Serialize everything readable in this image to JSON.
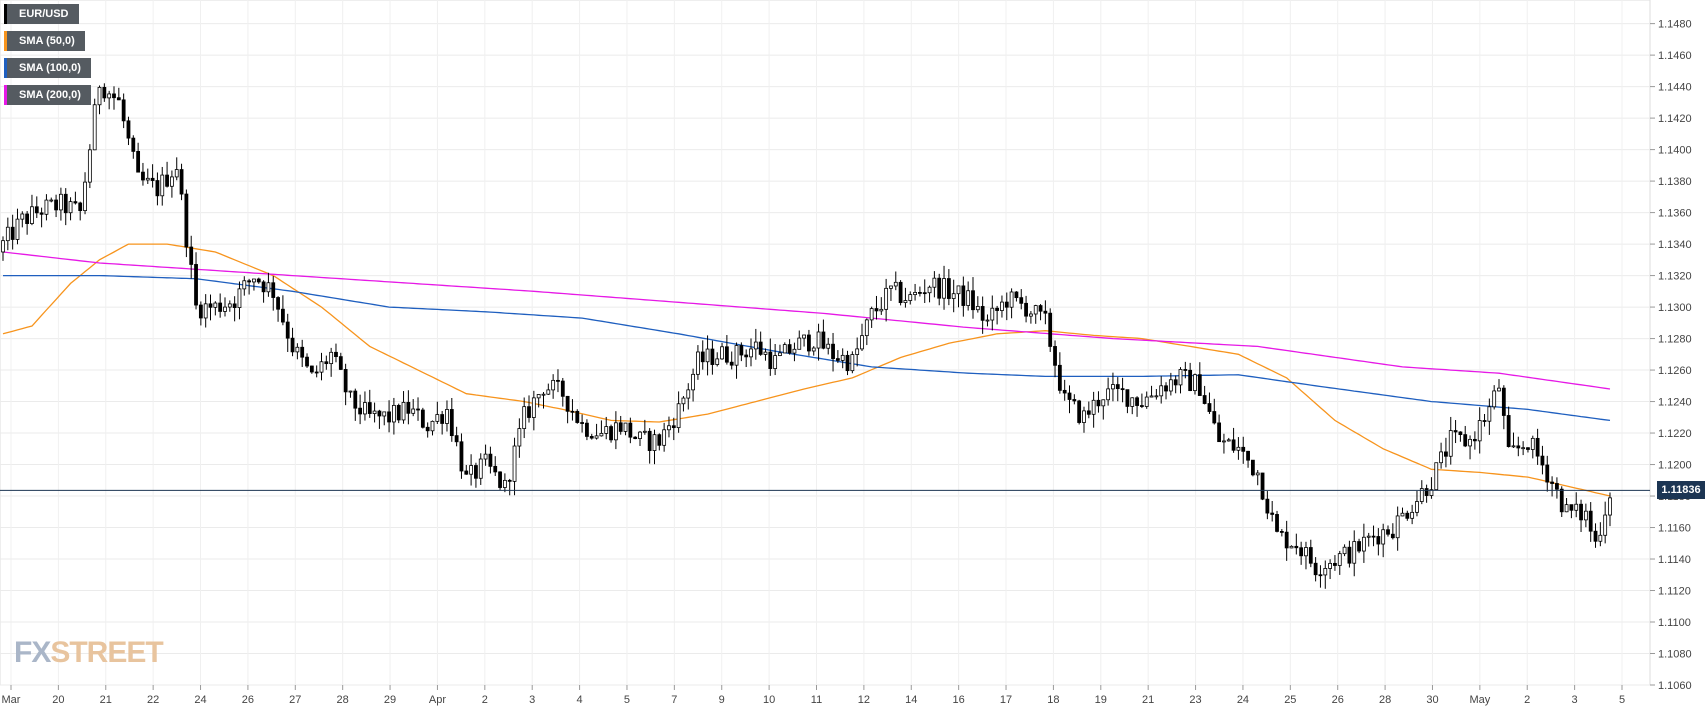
{
  "legend": [
    {
      "label": "EUR/USD",
      "color": "#000000"
    },
    {
      "label": "SMA (50,0)",
      "color": "#f7941d"
    },
    {
      "label": "SMA (100,0)",
      "color": "#1f5fbf"
    },
    {
      "label": "SMA (200,0)",
      "color": "#e619e6"
    }
  ],
  "logo": {
    "fx": "FX",
    "street": "STREET"
  },
  "current_price_label": "1.11836",
  "chart_data": {
    "type": "candlestick",
    "symbol": "EUR/USD",
    "y_ticks": [
      "1.1480",
      "1.1460",
      "1.1440",
      "1.1420",
      "1.1400",
      "1.1380",
      "1.1360",
      "1.1340",
      "1.1320",
      "1.1300",
      "1.1280",
      "1.1260",
      "1.1240",
      "1.1220",
      "1.1200",
      "1.1180",
      "1.1160",
      "1.1140",
      "1.1120",
      "1.1100",
      "1.1080",
      "1.1060"
    ],
    "ylim": [
      1.106,
      1.1495
    ],
    "x_ticks": [
      "Mar",
      "20",
      "21",
      "22",
      "24",
      "26",
      "27",
      "28",
      "29",
      "Apr",
      "2",
      "3",
      "4",
      "5",
      "7",
      "9",
      "10",
      "11",
      "12",
      "14",
      "16",
      "17",
      "18",
      "19",
      "21",
      "23",
      "24",
      "25",
      "26",
      "28",
      "30",
      "May",
      "2",
      "3",
      "5"
    ],
    "current_price": 1.11836,
    "anchors": {
      "close": [
        [
          0,
          1.134
        ],
        [
          4,
          1.1355
        ],
        [
          8,
          1.1362
        ],
        [
          12,
          1.1365
        ],
        [
          16,
          1.136
        ],
        [
          20,
          1.1443
        ],
        [
          24,
          1.143
        ],
        [
          28,
          1.138
        ],
        [
          32,
          1.1375
        ],
        [
          36,
          1.139
        ],
        [
          40,
          1.13
        ],
        [
          44,
          1.13
        ],
        [
          48,
          1.1305
        ],
        [
          52,
          1.132
        ],
        [
          56,
          1.131
        ],
        [
          60,
          1.1275
        ],
        [
          64,
          1.1255
        ],
        [
          68,
          1.127
        ],
        [
          72,
          1.124
        ],
        [
          76,
          1.123
        ],
        [
          80,
          1.123
        ],
        [
          84,
          1.1235
        ],
        [
          88,
          1.1225
        ],
        [
          92,
          1.1235
        ],
        [
          96,
          1.119
        ],
        [
          100,
          1.12
        ],
        [
          104,
          1.1185
        ],
        [
          108,
          1.123
        ],
        [
          112,
          1.125
        ],
        [
          116,
          1.1245
        ],
        [
          120,
          1.1225
        ],
        [
          124,
          1.122
        ],
        [
          128,
          1.1225
        ],
        [
          132,
          1.1215
        ],
        [
          136,
          1.1215
        ],
        [
          140,
          1.1235
        ],
        [
          144,
          1.1265
        ],
        [
          148,
          1.127
        ],
        [
          152,
          1.127
        ],
        [
          156,
          1.1275
        ],
        [
          160,
          1.1265
        ],
        [
          164,
          1.1275
        ],
        [
          168,
          1.128
        ],
        [
          172,
          1.127
        ],
        [
          176,
          1.1265
        ],
        [
          180,
          1.1295
        ],
        [
          184,
          1.131
        ],
        [
          188,
          1.1305
        ],
        [
          192,
          1.1315
        ],
        [
          196,
          1.131
        ],
        [
          200,
          1.1305
        ],
        [
          204,
          1.129
        ],
        [
          208,
          1.1305
        ],
        [
          212,
          1.13
        ],
        [
          216,
          1.129
        ],
        [
          220,
          1.124
        ],
        [
          224,
          1.123
        ],
        [
          228,
          1.1245
        ],
        [
          232,
          1.1245
        ],
        [
          236,
          1.124
        ],
        [
          240,
          1.125
        ],
        [
          244,
          1.1255
        ],
        [
          248,
          1.125
        ],
        [
          252,
          1.1215
        ],
        [
          256,
          1.121
        ],
        [
          260,
          1.1195
        ],
        [
          264,
          1.1155
        ],
        [
          268,
          1.115
        ],
        [
          272,
          1.1135
        ],
        [
          276,
          1.114
        ],
        [
          280,
          1.1145
        ],
        [
          284,
          1.1155
        ],
        [
          288,
          1.116
        ],
        [
          292,
          1.1175
        ],
        [
          296,
          1.119
        ],
        [
          300,
          1.1215
        ],
        [
          304,
          1.1215
        ],
        [
          308,
          1.1235
        ],
        [
          310,
          1.125
        ],
        [
          312,
          1.1205
        ],
        [
          316,
          1.1215
        ],
        [
          320,
          1.1195
        ],
        [
          324,
          1.117
        ],
        [
          328,
          1.1168
        ],
        [
          330,
          1.115
        ],
        [
          333,
          1.1183
        ]
      ],
      "sma50": [
        [
          0,
          1.1283
        ],
        [
          6,
          1.1288
        ],
        [
          14,
          1.1315
        ],
        [
          20,
          1.133
        ],
        [
          26,
          1.134
        ],
        [
          34,
          1.134
        ],
        [
          44,
          1.1335
        ],
        [
          56,
          1.132
        ],
        [
          66,
          1.13
        ],
        [
          76,
          1.1275
        ],
        [
          86,
          1.126
        ],
        [
          96,
          1.1245
        ],
        [
          108,
          1.124
        ],
        [
          116,
          1.1235
        ],
        [
          126,
          1.1228
        ],
        [
          136,
          1.1227
        ],
        [
          146,
          1.1232
        ],
        [
          156,
          1.124
        ],
        [
          166,
          1.1248
        ],
        [
          176,
          1.1255
        ],
        [
          186,
          1.1268
        ],
        [
          196,
          1.1277
        ],
        [
          206,
          1.1283
        ],
        [
          216,
          1.1285
        ],
        [
          226,
          1.1282
        ],
        [
          236,
          1.128
        ],
        [
          246,
          1.1275
        ],
        [
          256,
          1.127
        ],
        [
          266,
          1.1255
        ],
        [
          276,
          1.1228
        ],
        [
          286,
          1.121
        ],
        [
          296,
          1.1197
        ],
        [
          306,
          1.1195
        ],
        [
          316,
          1.1192
        ],
        [
          326,
          1.1185
        ],
        [
          333,
          1.118
        ]
      ],
      "sma100": [
        [
          0,
          1.132
        ],
        [
          20,
          1.132
        ],
        [
          40,
          1.1318
        ],
        [
          60,
          1.131
        ],
        [
          80,
          1.13
        ],
        [
          100,
          1.1297
        ],
        [
          120,
          1.1293
        ],
        [
          140,
          1.1283
        ],
        [
          160,
          1.1272
        ],
        [
          180,
          1.1262
        ],
        [
          200,
          1.1258
        ],
        [
          216,
          1.1256
        ],
        [
          236,
          1.1256
        ],
        [
          256,
          1.1257
        ],
        [
          272,
          1.125
        ],
        [
          296,
          1.124
        ],
        [
          316,
          1.1235
        ],
        [
          333,
          1.1228
        ]
      ],
      "sma200": [
        [
          0,
          1.1335
        ],
        [
          20,
          1.1328
        ],
        [
          50,
          1.1322
        ],
        [
          80,
          1.1316
        ],
        [
          110,
          1.131
        ],
        [
          140,
          1.1303
        ],
        [
          170,
          1.1296
        ],
        [
          200,
          1.1287
        ],
        [
          230,
          1.128
        ],
        [
          260,
          1.1275
        ],
        [
          290,
          1.1262
        ],
        [
          310,
          1.1258
        ],
        [
          333,
          1.1248
        ]
      ]
    }
  }
}
